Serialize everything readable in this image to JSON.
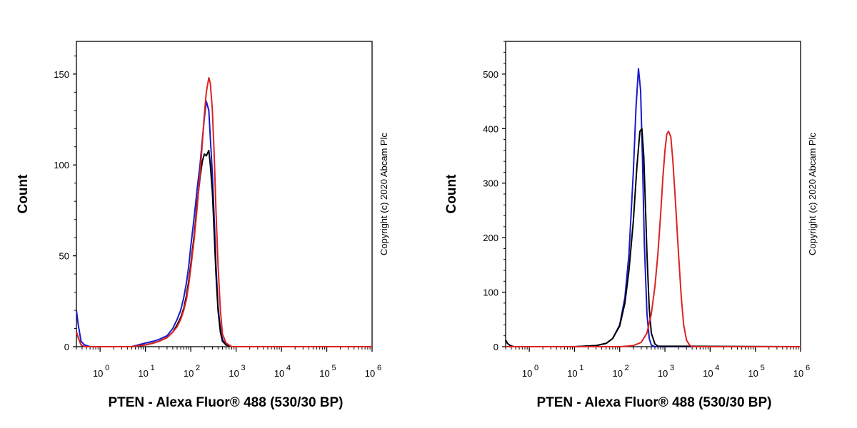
{
  "chart_data": [
    {
      "type": "line",
      "ylabel": "Count",
      "xlabel": "PTEN - Alexa Fluor® 488 (530/30 BP)",
      "copyright": "Copyright (c) 2020 Abcam Plc",
      "xscale": "log",
      "xlim": [
        0.3,
        1000000
      ],
      "ylim": [
        0,
        168
      ],
      "yticks": [
        0,
        50,
        100,
        150
      ],
      "ytick_labels": [
        "0",
        "50",
        "100",
        "150"
      ],
      "xticks": [
        1,
        10,
        100,
        1000,
        10000,
        100000,
        1000000
      ],
      "xtick_labels": [
        "0",
        "1",
        "2",
        "3",
        "4",
        "5",
        "6"
      ],
      "xtick_base": "10",
      "series": [
        {
          "name": "blue",
          "color": "#1a1acc",
          "x": [
            0.3,
            0.33,
            0.38,
            0.45,
            0.6,
            1,
            5,
            10,
            15,
            20,
            30,
            40,
            50,
            60,
            70,
            80,
            90,
            100,
            120,
            140,
            160,
            180,
            200,
            220,
            250,
            270,
            300,
            330,
            360,
            400,
            450,
            500,
            600,
            800,
            1000,
            1000000
          ],
          "y": [
            20,
            12,
            3,
            1,
            0,
            0,
            0,
            2,
            3,
            4,
            6,
            10,
            15,
            20,
            27,
            35,
            44,
            55,
            72,
            88,
            100,
            114,
            126,
            135,
            130,
            115,
            95,
            70,
            45,
            22,
            10,
            4,
            1,
            0,
            0,
            0
          ]
        },
        {
          "name": "black",
          "color": "#000000",
          "x": [
            0.3,
            0.33,
            0.38,
            0.45,
            0.6,
            1,
            5,
            10,
            15,
            20,
            30,
            40,
            50,
            60,
            70,
            80,
            90,
            100,
            120,
            140,
            160,
            180,
            200,
            220,
            250,
            270,
            300,
            330,
            360,
            400,
            450,
            500,
            600,
            800,
            1000,
            1000000
          ],
          "y": [
            8,
            5,
            1,
            0,
            0,
            0,
            0,
            1,
            2,
            3,
            5,
            8,
            12,
            16,
            21,
            28,
            36,
            45,
            62,
            80,
            93,
            102,
            106,
            105,
            108,
            100,
            85,
            62,
            40,
            20,
            8,
            3,
            1,
            0,
            0,
            0
          ]
        },
        {
          "name": "red",
          "color": "#dd2222",
          "x": [
            0.3,
            0.33,
            0.38,
            0.45,
            0.6,
            1,
            5,
            10,
            15,
            20,
            30,
            40,
            50,
            60,
            70,
            80,
            90,
            100,
            120,
            140,
            160,
            180,
            200,
            220,
            250,
            270,
            300,
            330,
            360,
            400,
            450,
            500,
            600,
            800,
            1000,
            1000000
          ],
          "y": [
            8,
            5,
            1,
            0,
            0,
            0,
            0,
            1,
            2,
            3,
            5,
            8,
            11,
            15,
            20,
            26,
            34,
            43,
            60,
            78,
            95,
            112,
            128,
            140,
            148,
            145,
            130,
            105,
            75,
            45,
            20,
            7,
            2,
            0,
            0,
            0
          ]
        }
      ]
    },
    {
      "type": "line",
      "ylabel": "Count",
      "xlabel": "PTEN - Alexa Fluor® 488 (530/30 BP)",
      "copyright": "Copyright (c) 2020 Abcam Plc",
      "xscale": "log",
      "xlim": [
        0.3,
        1000000
      ],
      "ylim": [
        0,
        560
      ],
      "yticks": [
        0,
        100,
        200,
        300,
        400,
        500
      ],
      "ytick_labels": [
        "0",
        "100",
        "200",
        "300",
        "400",
        "500"
      ],
      "xticks": [
        1,
        10,
        100,
        1000,
        10000,
        100000,
        1000000
      ],
      "xtick_labels": [
        "0",
        "1",
        "2",
        "3",
        "4",
        "5",
        "6"
      ],
      "xtick_base": "10",
      "series": [
        {
          "name": "blue",
          "color": "#1a1acc",
          "x": [
            0.3,
            0.33,
            0.38,
            0.45,
            0.6,
            1,
            10,
            30,
            50,
            70,
            100,
            130,
            160,
            200,
            230,
            260,
            290,
            320,
            350,
            400,
            450,
            500,
            600,
            1000000
          ],
          "y": [
            12,
            6,
            2,
            0,
            0,
            0,
            0,
            2,
            6,
            15,
            40,
            90,
            170,
            320,
            440,
            510,
            470,
            340,
            190,
            60,
            15,
            3,
            0,
            0
          ]
        },
        {
          "name": "black",
          "color": "#000000",
          "x": [
            0.3,
            0.33,
            0.38,
            0.45,
            0.6,
            1,
            10,
            30,
            50,
            70,
            100,
            130,
            160,
            200,
            240,
            280,
            310,
            340,
            370,
            400,
            450,
            500,
            600,
            700,
            1000000
          ],
          "y": [
            12,
            6,
            2,
            0,
            0,
            0,
            0,
            2,
            6,
            15,
            38,
            80,
            140,
            230,
            330,
            395,
            400,
            350,
            260,
            170,
            70,
            25,
            5,
            1,
            0
          ]
        },
        {
          "name": "red",
          "color": "#dd2222",
          "x": [
            0.3,
            0.6,
            1,
            100,
            200,
            300,
            400,
            500,
            600,
            700,
            800,
            900,
            1000,
            1100,
            1200,
            1350,
            1500,
            1700,
            2000,
            2300,
            2600,
            3000,
            3500,
            4000,
            1000000
          ],
          "y": [
            0,
            0,
            0,
            0,
            2,
            8,
            25,
            60,
            110,
            170,
            240,
            310,
            360,
            390,
            395,
            385,
            340,
            270,
            170,
            90,
            40,
            12,
            3,
            0,
            0
          ]
        }
      ]
    }
  ]
}
